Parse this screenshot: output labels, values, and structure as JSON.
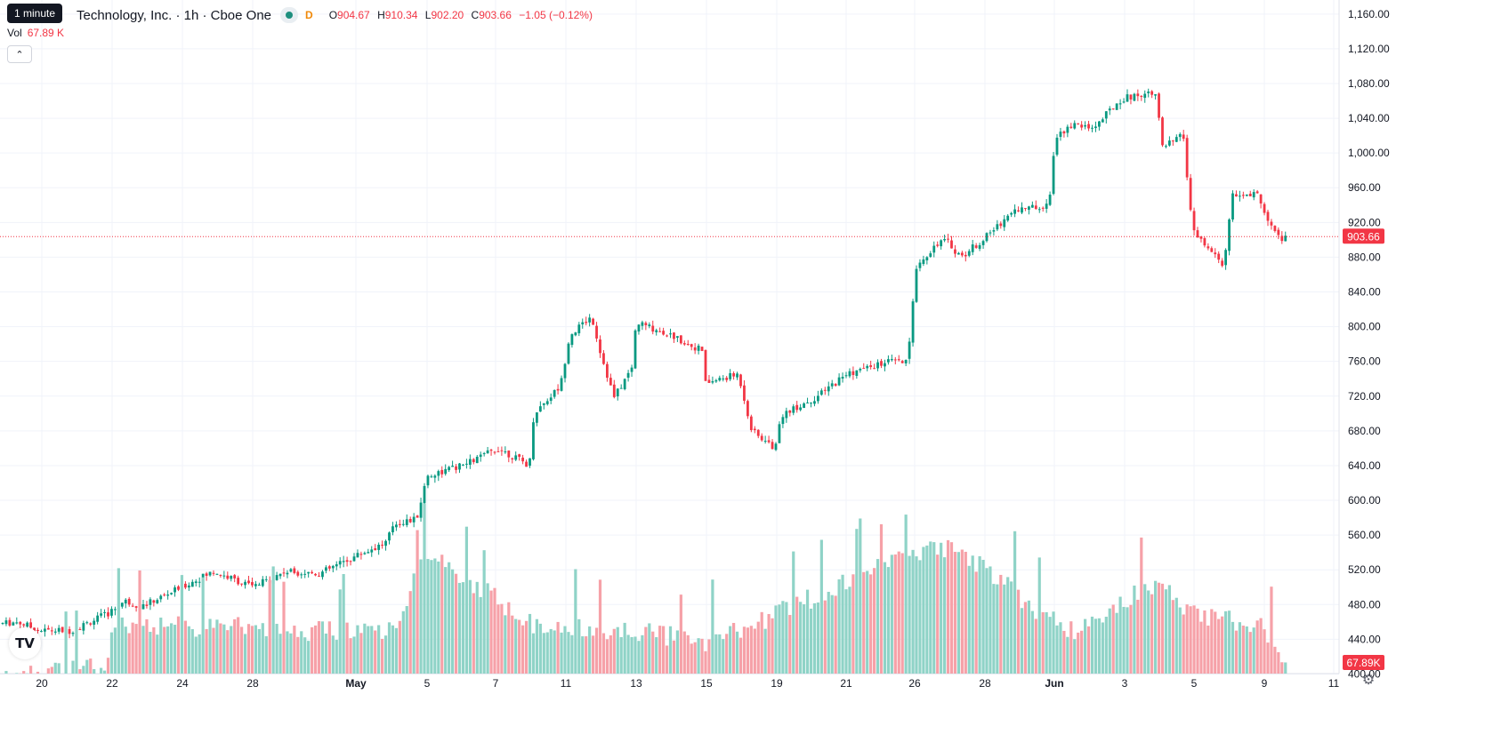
{
  "header": {
    "tooltip": "1 minute",
    "symbol": "Technology, Inc. · 1h · Cboe One",
    "exchange_badge": "D",
    "o_label": "O",
    "o_value": "904.67",
    "h_label": "H",
    "h_value": "910.34",
    "l_label": "L",
    "l_value": "902.20",
    "c_label": "C",
    "c_value": "903.66",
    "change": "−1.05 (−0.12%)",
    "vol_label": "Vol",
    "vol_value": "67.89 K",
    "collapse_icon": "chevron-up-icon"
  },
  "colors": {
    "up": "#089981",
    "down": "#f23645",
    "vol_up": "#8fd3c7",
    "vol_down": "#f6a1a8",
    "grid": "#f0f3fa"
  },
  "chart_data": {
    "type": "candlestick",
    "y_ticks": [
      "1,160.00",
      "1,120.00",
      "1,080.00",
      "1,040.00",
      "1,000.00",
      "960.00",
      "920.00",
      "880.00",
      "840.00",
      "800.00",
      "760.00",
      "720.00",
      "680.00",
      "640.00",
      "600.00",
      "560.00",
      "520.00",
      "480.00",
      "440.00",
      "400.00"
    ],
    "ylim": [
      380,
      1168
    ],
    "x_ticks": [
      "20",
      "22",
      "24",
      "28",
      "May",
      "5",
      "7",
      "11",
      "13",
      "15",
      "19",
      "21",
      "26",
      "28",
      "Jun",
      "3",
      "5",
      "9",
      "11"
    ],
    "last_price": "903.66",
    "last_volume": "67.89K",
    "anchors": [
      [
        0,
        458
      ],
      [
        20,
        460
      ],
      [
        45,
        450
      ],
      [
        80,
        450
      ],
      [
        122,
        470
      ],
      [
        140,
        484
      ],
      [
        160,
        478
      ],
      [
        200,
        498
      ],
      [
        240,
        518
      ],
      [
        285,
        500
      ],
      [
        320,
        518
      ],
      [
        360,
        516
      ],
      [
        400,
        536
      ],
      [
        435,
        552
      ],
      [
        442,
        573
      ],
      [
        468,
        578
      ],
      [
        480,
        628
      ],
      [
        520,
        640
      ],
      [
        560,
        660
      ],
      [
        595,
        640
      ],
      [
        600,
        700
      ],
      [
        630,
        732
      ],
      [
        640,
        790
      ],
      [
        665,
        812
      ],
      [
        675,
        770
      ],
      [
        690,
        718
      ],
      [
        710,
        752
      ],
      [
        715,
        805
      ],
      [
        750,
        792
      ],
      [
        790,
        772
      ],
      [
        793,
        735
      ],
      [
        830,
        745
      ],
      [
        845,
        680
      ],
      [
        870,
        660
      ],
      [
        880,
        700
      ],
      [
        900,
        710
      ],
      [
        920,
        720
      ],
      [
        950,
        745
      ],
      [
        1000,
        760
      ],
      [
        1020,
        758
      ],
      [
        1030,
        870
      ],
      [
        1055,
        898
      ],
      [
        1065,
        898
      ],
      [
        1080,
        880
      ],
      [
        1110,
        905
      ],
      [
        1140,
        935
      ],
      [
        1170,
        938
      ],
      [
        1180,
        950
      ],
      [
        1185,
        1012
      ],
      [
        1200,
        1032
      ],
      [
        1230,
        1030
      ],
      [
        1260,
        1062
      ],
      [
        1300,
        1072
      ],
      [
        1305,
        1005
      ],
      [
        1330,
        1020
      ],
      [
        1340,
        910
      ],
      [
        1375,
        870
      ],
      [
        1385,
        950
      ],
      [
        1415,
        952
      ],
      [
        1425,
        920
      ],
      [
        1440,
        900
      ],
      [
        1448,
        904
      ]
    ],
    "volume_anchors": [
      [
        0,
        410
      ],
      [
        120,
        420
      ],
      [
        125,
        470
      ],
      [
        440,
        460
      ],
      [
        480,
        550
      ],
      [
        600,
        470
      ],
      [
        635,
        470
      ],
      [
        800,
        450
      ],
      [
        1025,
        550
      ],
      [
        1070,
        560
      ],
      [
        1200,
        460
      ],
      [
        1300,
        520
      ],
      [
        1345,
        480
      ],
      [
        1420,
        470
      ],
      [
        1445,
        420
      ]
    ]
  }
}
